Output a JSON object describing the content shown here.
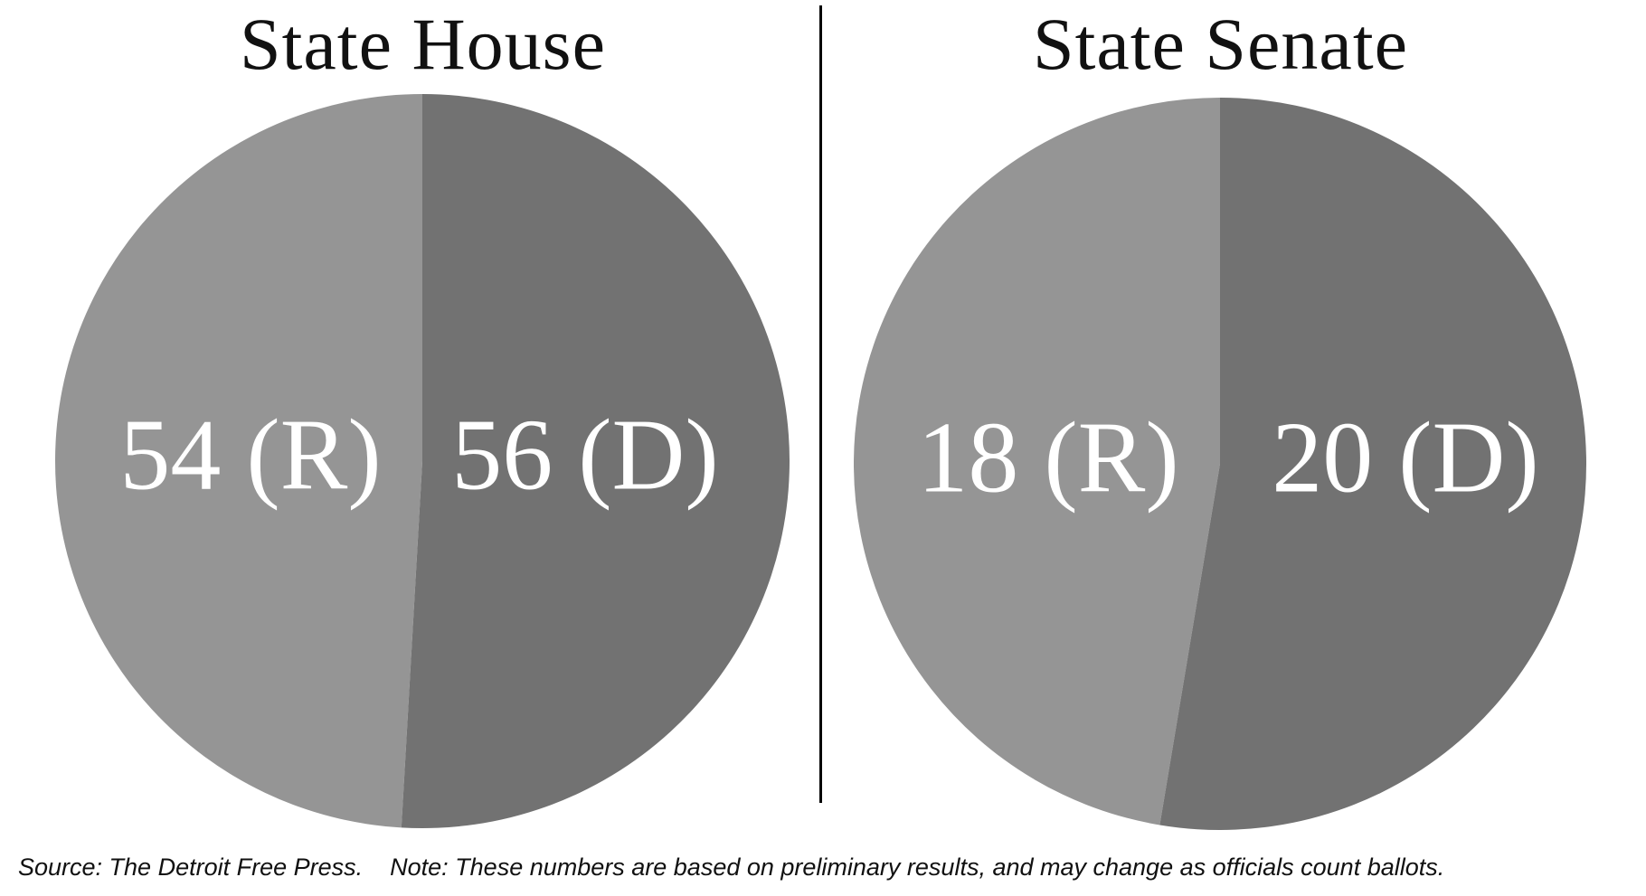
{
  "chart_data": [
    {
      "type": "pie",
      "title": "State House",
      "categories": [
        "(R)",
        "(D)"
      ],
      "values": [
        54,
        56
      ],
      "slice_labels": [
        "54 (R)",
        "56 (D)"
      ],
      "colors": [
        "#959595",
        "#727272"
      ]
    },
    {
      "type": "pie",
      "title": "State Senate",
      "categories": [
        "(R)",
        "(D)"
      ],
      "values": [
        18,
        20
      ],
      "slice_labels": [
        "18 (R)",
        "20 (D)"
      ],
      "colors": [
        "#959595",
        "#727272"
      ]
    }
  ],
  "footnote": {
    "source": "Source: The Detroit Free Press.",
    "note": "Note: These numbers are based on preliminary results, and may change as officials count ballots."
  }
}
